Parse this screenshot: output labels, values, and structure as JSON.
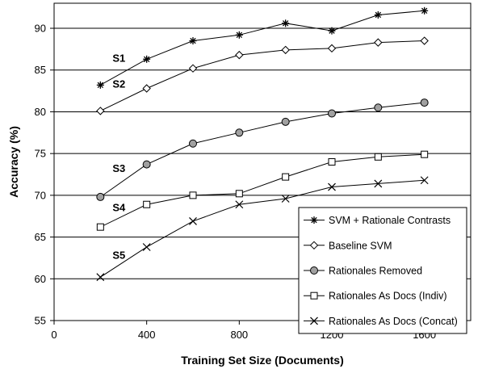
{
  "chart_data": {
    "type": "line",
    "xlabel": "Training Set Size (Documents)",
    "ylabel": "Accuracy (%)",
    "xlim": [
      0,
      1800
    ],
    "ylim": [
      55,
      93
    ],
    "xticks": [
      0,
      400,
      800,
      1200,
      1600
    ],
    "yticks": [
      55,
      60,
      65,
      70,
      75,
      80,
      85,
      90
    ],
    "grid": "horizontal",
    "legend_position": "bottom-right",
    "x": [
      200,
      400,
      600,
      800,
      1000,
      1200,
      1400,
      1600
    ],
    "series": [
      {
        "name": "SVM + Rationale Contrasts",
        "marker": "asterisk",
        "values": [
          83.2,
          86.3,
          88.5,
          89.2,
          90.6,
          89.7,
          91.6,
          92.1
        ]
      },
      {
        "name": "Baseline SVM",
        "marker": "diamond",
        "values": [
          80.1,
          82.8,
          85.2,
          86.8,
          87.4,
          87.6,
          88.3,
          88.5
        ]
      },
      {
        "name": "Rationales Removed",
        "marker": "circle",
        "values": [
          69.8,
          73.7,
          76.2,
          77.5,
          78.8,
          79.8,
          80.5,
          81.1
        ]
      },
      {
        "name": "Rationales As Docs (Indiv)",
        "marker": "square",
        "values": [
          66.2,
          68.9,
          70.0,
          70.2,
          72.2,
          74.0,
          74.6,
          74.9
        ]
      },
      {
        "name": "Rationales As Docs (Concat)",
        "marker": "x",
        "values": [
          60.2,
          63.8,
          66.9,
          68.9,
          69.6,
          71.0,
          71.4,
          71.8
        ]
      }
    ],
    "annotations": [
      {
        "text": "S1",
        "x": 280,
        "y": 86.0
      },
      {
        "text": "S2",
        "x": 280,
        "y": 82.9
      },
      {
        "text": "S3",
        "x": 280,
        "y": 72.8
      },
      {
        "text": "S4",
        "x": 280,
        "y": 68.1
      },
      {
        "text": "S5",
        "x": 280,
        "y": 62.4
      }
    ]
  }
}
